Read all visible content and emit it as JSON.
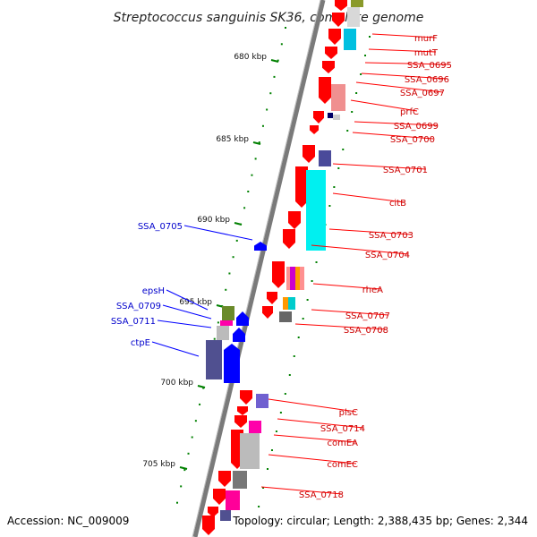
{
  "title": "Streptococcus sanguinis SK36, complete genome",
  "accession_text": "Accession: NC_009009",
  "summary_text": "Topology: circular; Length: 2,388,435 bp; Genes: 2,344",
  "colors": {
    "forward_gene": "#ff0000",
    "reverse_gene": "#0000ff",
    "forward_label": "#cc0000",
    "reverse_label": "#0000cc",
    "backbone": "#888888",
    "tick": "#008000"
  },
  "ticks": [
    {
      "label": "680 kbp",
      "position_kbp": 680
    },
    {
      "label": "685 kbp",
      "position_kbp": 685
    },
    {
      "label": "690 kbp",
      "position_kbp": 690
    },
    {
      "label": "695 kbp",
      "position_kbp": 695
    },
    {
      "label": "700 kbp",
      "position_kbp": 700
    },
    {
      "label": "705 kbp",
      "position_kbp": 705
    }
  ],
  "genes_forward": [
    {
      "label": "murF"
    },
    {
      "label": "mutT"
    },
    {
      "label": "SSA_0695"
    },
    {
      "label": "SSA_0696"
    },
    {
      "label": "SSA_0697"
    },
    {
      "label": "prfC"
    },
    {
      "label": "SSA_0699"
    },
    {
      "label": "SSA_0700"
    },
    {
      "label": "SSA_0701"
    },
    {
      "label": "citB"
    },
    {
      "label": "SSA_0703"
    },
    {
      "label": "SSA_0704"
    },
    {
      "label": "rheA"
    },
    {
      "label": "SSA_0707"
    },
    {
      "label": "SSA_0708"
    },
    {
      "label": "plsC"
    },
    {
      "label": "SSA_0714"
    },
    {
      "label": "comEA"
    },
    {
      "label": "comEC"
    },
    {
      "label": "SSA_0718"
    }
  ],
  "genes_reverse": [
    {
      "label": "SSA_0705"
    },
    {
      "label": "epsH"
    },
    {
      "label": "SSA_0709"
    },
    {
      "label": "SSA_0711"
    },
    {
      "label": "ctpE"
    }
  ]
}
